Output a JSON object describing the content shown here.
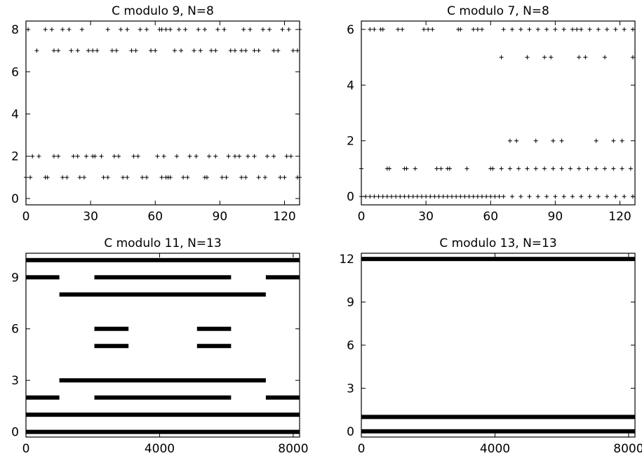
{
  "chart_data": [
    {
      "type": "scatter",
      "title": "C modulo 9, N=8",
      "xlim": [
        0,
        127
      ],
      "ylim": [
        -0.3,
        8.4
      ],
      "xticks": [
        0,
        30,
        60,
        90,
        120
      ],
      "yticks": [
        0,
        2,
        4,
        6,
        8
      ],
      "marker": "+",
      "rows": [
        {
          "y": 8,
          "x": [
            1,
            9,
            12,
            17,
            20,
            26,
            38,
            44,
            47,
            53,
            56,
            62,
            63,
            65,
            67,
            71,
            74,
            80,
            83,
            89,
            92,
            101,
            104,
            110,
            113,
            119,
            122,
            127
          ]
        },
        {
          "y": 7,
          "x": [
            5,
            13,
            15,
            21,
            24,
            29,
            31,
            33,
            40,
            42,
            49,
            51,
            58,
            60,
            69,
            72,
            78,
            81,
            86,
            88,
            95,
            97,
            100,
            102,
            106,
            108,
            115,
            117,
            124,
            126
          ]
        },
        {
          "y": 2,
          "x": [
            3,
            6,
            13,
            15,
            22,
            24,
            28,
            31,
            32,
            35,
            41,
            43,
            50,
            52,
            61,
            64,
            70,
            76,
            79,
            85,
            88,
            94,
            97,
            99,
            103,
            106,
            112,
            115,
            121,
            123
          ]
        },
        {
          "y": 1,
          "x": [
            0,
            2,
            9,
            10,
            17,
            19,
            25,
            27,
            36,
            38,
            45,
            47,
            54,
            56,
            63,
            65,
            66,
            67,
            73,
            75,
            83,
            84,
            91,
            93,
            100,
            102,
            108,
            111,
            118,
            120,
            126,
            127
          ]
        }
      ]
    },
    {
      "type": "scatter",
      "title": "C modulo 7, N=8",
      "xlim": [
        0,
        127
      ],
      "ylim": [
        -0.3,
        6.3
      ],
      "xticks": [
        0,
        30,
        60,
        90,
        120
      ],
      "yticks": [
        0,
        2,
        4,
        6
      ],
      "marker": "+",
      "rows": [
        {
          "y": 6,
          "x": [
            4,
            6,
            9,
            10,
            17,
            19,
            29,
            31,
            33,
            45,
            46,
            52,
            54,
            56,
            66,
            70,
            74,
            78,
            82,
            86,
            90,
            94,
            98,
            100,
            102,
            106,
            110,
            114,
            118,
            122,
            126
          ]
        },
        {
          "y": 5,
          "x": [
            65,
            77,
            85,
            88,
            101,
            104,
            113,
            126
          ]
        },
        {
          "y": 2,
          "x": [
            69,
            72,
            81,
            89,
            93,
            109,
            117,
            121
          ]
        },
        {
          "y": 1,
          "x": [
            0,
            12,
            13,
            20,
            21,
            25,
            35,
            37,
            40,
            41,
            49,
            60,
            61,
            65,
            69,
            73,
            77,
            81,
            85,
            89,
            93,
            97,
            101,
            105,
            109,
            113,
            117,
            121,
            125
          ]
        },
        {
          "y": 0,
          "x": [
            0,
            2,
            4,
            6,
            8,
            10,
            12,
            14,
            16,
            18,
            20,
            22,
            24,
            26,
            28,
            30,
            32,
            34,
            36,
            38,
            40,
            42,
            44,
            46,
            48,
            50,
            52,
            54,
            56,
            58,
            60,
            62,
            64,
            66,
            70,
            74,
            78,
            82,
            86,
            90,
            94,
            98,
            102,
            106,
            110,
            114,
            118,
            122,
            126
          ]
        }
      ]
    },
    {
      "type": "scatter",
      "title": "C modulo 11, N=13",
      "xlim": [
        0,
        8191
      ],
      "ylim": [
        -0.3,
        10.4
      ],
      "xticks": [
        0,
        4000,
        8000
      ],
      "yticks": [
        0,
        3,
        6,
        9
      ],
      "marker": "+",
      "bands": [
        {
          "y": 10,
          "x_ranges": [
            [
              0,
              8191
            ]
          ]
        },
        {
          "y": 9,
          "x_ranges": [
            [
              0,
              1000
            ],
            [
              2048,
              6140
            ],
            [
              7180,
              8191
            ]
          ]
        },
        {
          "y": 8,
          "x_ranges": [
            [
              1000,
              7180
            ]
          ]
        },
        {
          "y": 6,
          "x_ranges": [
            [
              2048,
              3070
            ],
            [
              5120,
              6140
            ]
          ]
        },
        {
          "y": 5,
          "x_ranges": [
            [
              2048,
              3070
            ],
            [
              5120,
              6140
            ]
          ]
        },
        {
          "y": 3,
          "x_ranges": [
            [
              1000,
              7180
            ]
          ]
        },
        {
          "y": 2,
          "x_ranges": [
            [
              0,
              1000
            ],
            [
              2048,
              6140
            ],
            [
              7180,
              8191
            ]
          ]
        },
        {
          "y": 1,
          "x_ranges": [
            [
              0,
              8191
            ]
          ]
        },
        {
          "y": 0,
          "x_ranges": [
            [
              0,
              8191
            ]
          ]
        }
      ]
    },
    {
      "type": "scatter",
      "title": "C modulo 13, N=13",
      "xlim": [
        0,
        8191
      ],
      "ylim": [
        -0.4,
        12.4
      ],
      "xticks": [
        0,
        4000,
        8000
      ],
      "yticks": [
        0,
        3,
        6,
        9,
        12
      ],
      "marker": "+",
      "bands": [
        {
          "y": 12,
          "x_ranges": [
            [
              0,
              8191
            ]
          ]
        },
        {
          "y": 1,
          "x_ranges": [
            [
              0,
              8191
            ]
          ]
        },
        {
          "y": 0,
          "x_ranges": [
            [
              0,
              8191
            ]
          ]
        }
      ]
    }
  ]
}
